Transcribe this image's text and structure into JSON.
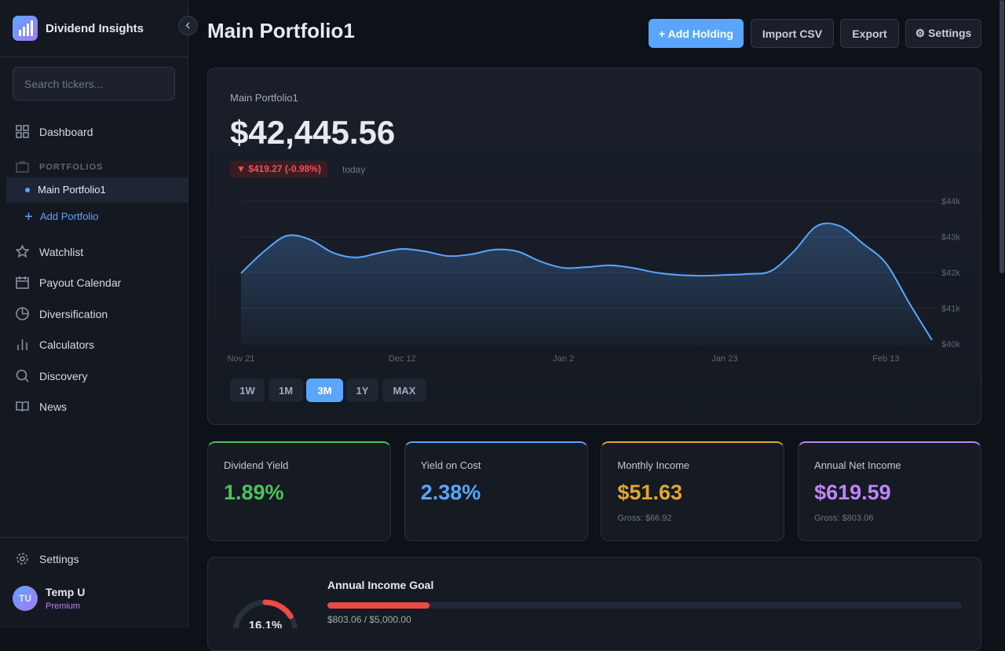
{
  "sidebar": {
    "brand": "Dividend Insights",
    "search_placeholder": "Search tickers...",
    "dashboard": "Dashboard",
    "portfolios_label": "PORTFOLIOS",
    "portfolio": "Main Portfolio1",
    "add_portfolio": "Add Portfolio",
    "nav": [
      "Watchlist",
      "Payout Calendar",
      "Diversification",
      "Calculators",
      "Discovery",
      "News"
    ],
    "settings": "Settings",
    "user": {
      "initials": "TU",
      "name": "Temp U",
      "plan": "Premium"
    }
  },
  "header": {
    "title": "Main Portfolio1",
    "buttons": [
      "+ Add Holding",
      "Import CSV",
      "Export",
      "⚙ Settings"
    ]
  },
  "summary": {
    "name": "Main Portfolio1",
    "value": "$42,445.56",
    "change": "▼ $419.27 (-0.98%)",
    "change_period": "today"
  },
  "chart_data": {
    "type": "line",
    "color": "#5aa6ff",
    "categories": [
      "Nov 21",
      null,
      null,
      null,
      null,
      null,
      null,
      "Dec 12",
      null,
      null,
      null,
      null,
      null,
      null,
      "Jan 2",
      null,
      null,
      null,
      null,
      null,
      null,
      "Jan 23",
      null,
      null,
      null,
      null,
      null,
      null,
      "Feb 13",
      null,
      null
    ],
    "values": [
      41980,
      42590,
      43030,
      42920,
      42550,
      42420,
      42550,
      42660,
      42590,
      42460,
      42510,
      42640,
      42590,
      42310,
      42130,
      42150,
      42200,
      42130,
      42000,
      41930,
      41910,
      41930,
      41960,
      42040,
      42590,
      43300,
      43300,
      42810,
      42260,
      41160,
      40110
    ],
    "ylim": [
      40000,
      44000
    ],
    "yticks": [
      {
        "value": 40000,
        "label": "$40k"
      },
      {
        "value": 41000,
        "label": "$41k"
      },
      {
        "value": 42000,
        "label": "$42k"
      },
      {
        "value": 43000,
        "label": "$43k"
      },
      {
        "value": 44000,
        "label": "$44k"
      }
    ],
    "grid": true
  },
  "ranges": [
    "1W",
    "1M",
    "3M",
    "1Y",
    "MAX"
  ],
  "active_range": 2,
  "stats": [
    {
      "label": "Dividend Yield",
      "value": "1.89%",
      "color": "#4cc35a"
    },
    {
      "label": "Yield on Cost",
      "value": "2.38%",
      "color": "#5aa6ff"
    },
    {
      "label": "Monthly Income",
      "value": "$51.63",
      "sub": "Gross: $66.92",
      "color": "#e3a62d"
    },
    {
      "label": "Annual Net Income",
      "value": "$619.59",
      "sub": "Gross: $803.06",
      "color": "#c084fc"
    }
  ],
  "goal": {
    "title": "Annual Income Goal",
    "percent": 16.1,
    "percent_label": "16.1%",
    "amount": "$803.06 / $5,000.00",
    "color": "#f04848"
  }
}
